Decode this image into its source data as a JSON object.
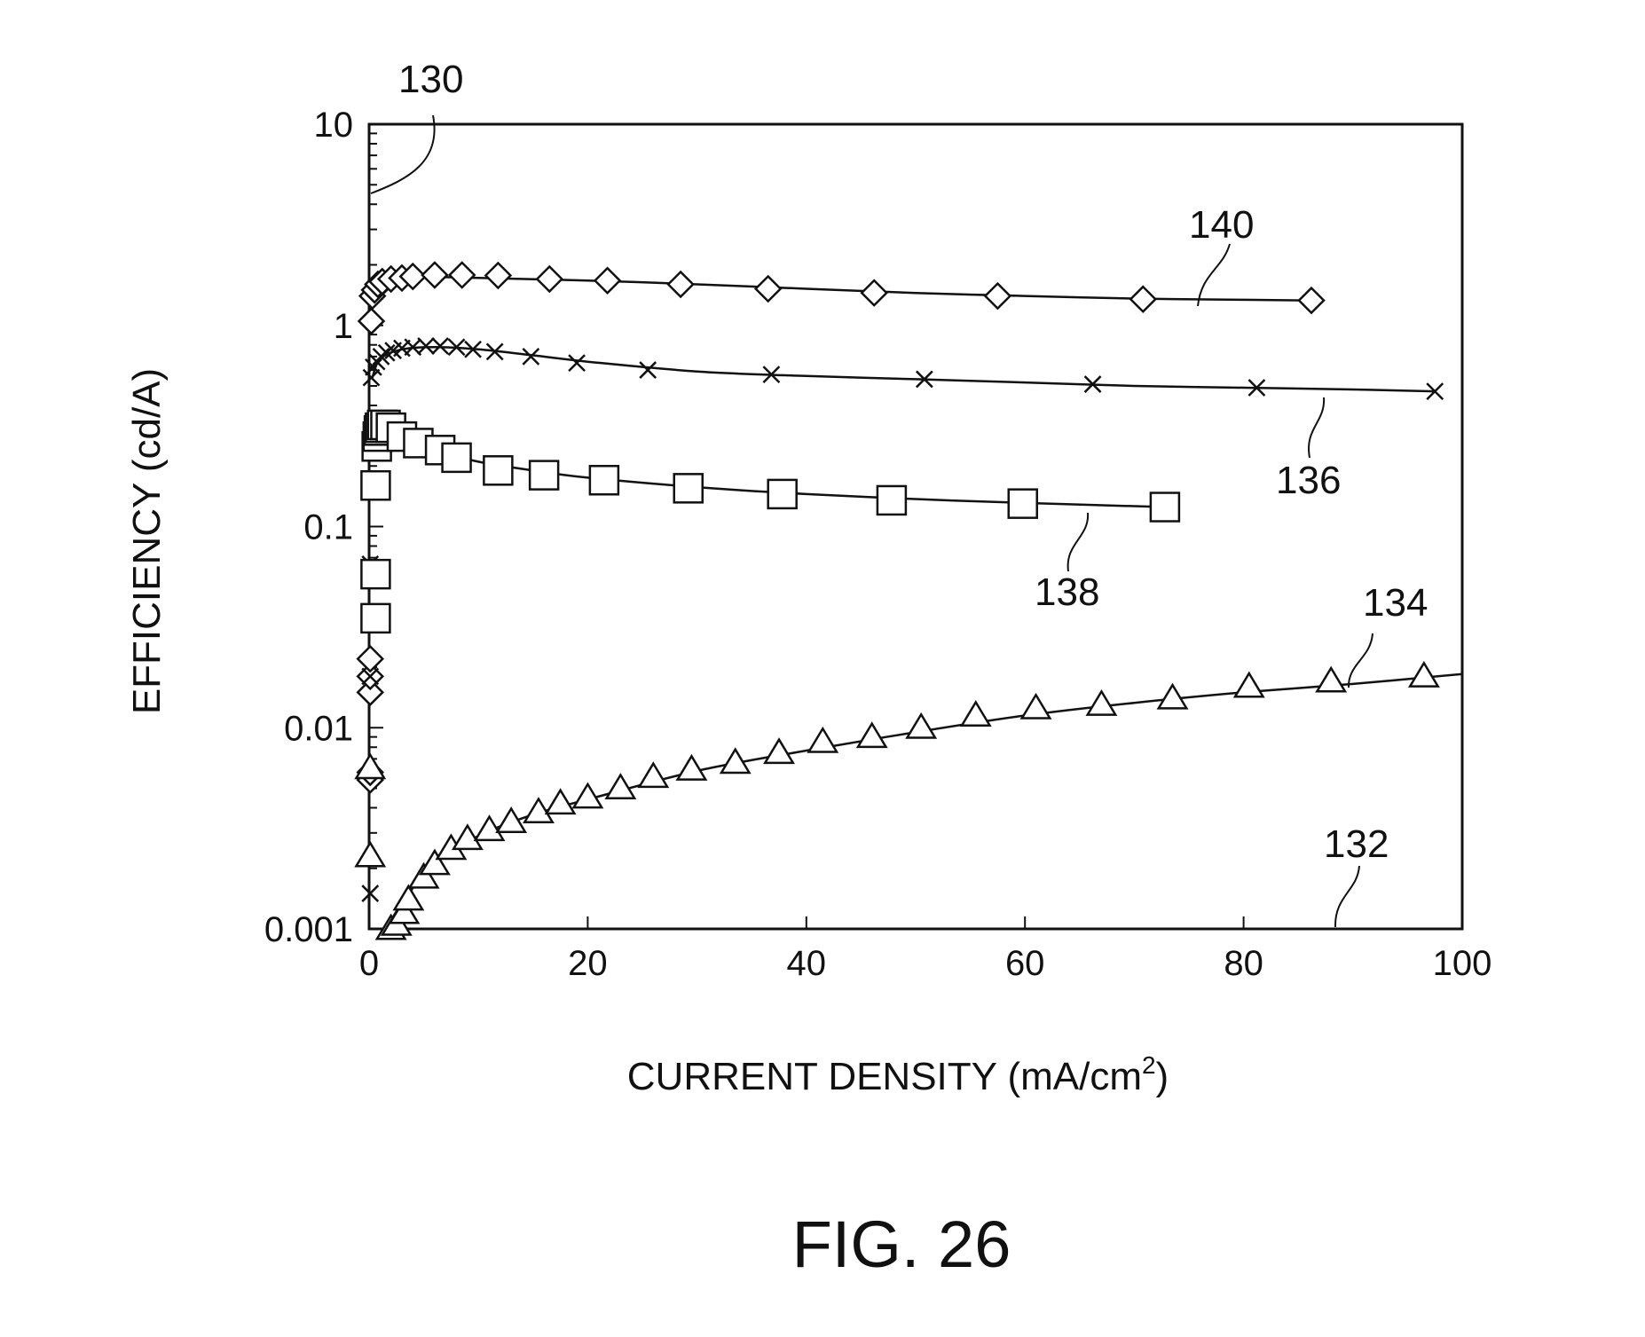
{
  "figure": {
    "caption": "FIG. 26"
  },
  "chart_data": {
    "type": "scatter",
    "title": "",
    "xlabel": "CURRENT DENSITY (mA/cm",
    "xlabel_sup": "2",
    "xlabel_end": ")",
    "ylabel": "EFFICIENCY (cd/A)",
    "xlim": [
      0,
      100
    ],
    "ylim": [
      0.001,
      10
    ],
    "y_scale": "log",
    "grid": false,
    "legend": "none",
    "x_ticks": [
      0,
      20,
      40,
      60,
      80,
      100
    ],
    "x_tick_labels": [
      "0",
      "20",
      "40",
      "60",
      "80",
      "100"
    ],
    "y_ticks": [
      0.001,
      0.01,
      0.1,
      1,
      10
    ],
    "y_tick_labels": [
      "0.001",
      "0.01",
      "0.1",
      "1",
      "10"
    ],
    "series": [
      {
        "ref": "140",
        "marker": "diamond",
        "x": [
          0.1,
          0.1,
          0.1,
          0.1,
          0.1,
          0.2,
          0.3,
          0.5,
          0.8,
          1.2,
          2,
          3,
          4,
          6,
          8.5,
          11.8,
          16.5,
          21.8,
          28.5,
          36.5,
          46.2,
          57.5,
          70.8,
          86.2
        ],
        "y": [
          0.0055,
          0.006,
          0.015,
          0.018,
          0.022,
          1.05,
          1.4,
          1.5,
          1.6,
          1.65,
          1.7,
          1.72,
          1.75,
          1.78,
          1.78,
          1.77,
          1.7,
          1.67,
          1.6,
          1.52,
          1.45,
          1.4,
          1.35,
          1.33
        ],
        "fit": {
          "x": [
            0.3,
            1,
            3,
            6,
            10,
            20,
            30,
            40,
            50,
            60,
            70,
            80,
            86.5
          ],
          "y": [
            1.25,
            1.6,
            1.72,
            1.74,
            1.72,
            1.67,
            1.6,
            1.52,
            1.45,
            1.4,
            1.36,
            1.34,
            1.33
          ]
        }
      },
      {
        "ref": "136",
        "marker": "x",
        "x": [
          0.1,
          0.1,
          0.1,
          0.2,
          0.4,
          0.7,
          1.1,
          1.6,
          2.2,
          3,
          4,
          5.2,
          6.5,
          8,
          9.5,
          11.5,
          14.8,
          19,
          25.5,
          36.8,
          50.8,
          66.2,
          81.2,
          97.5
        ],
        "y": [
          0.0015,
          0.018,
          0.065,
          0.55,
          0.62,
          0.66,
          0.7,
          0.73,
          0.75,
          0.77,
          0.78,
          0.79,
          0.79,
          0.78,
          0.76,
          0.74,
          0.7,
          0.65,
          0.6,
          0.57,
          0.54,
          0.51,
          0.49,
          0.47
        ],
        "fit": {
          "x": [
            0.3,
            1,
            3,
            6,
            10,
            15,
            20,
            30,
            40,
            50,
            60,
            70,
            80,
            90,
            97.5
          ],
          "y": [
            0.55,
            0.68,
            0.76,
            0.78,
            0.76,
            0.71,
            0.66,
            0.59,
            0.56,
            0.54,
            0.52,
            0.5,
            0.49,
            0.48,
            0.47
          ]
        }
      },
      {
        "ref": "138",
        "marker": "square",
        "x": [
          0.6,
          0.6,
          0.6,
          0.7,
          0.8,
          0.9,
          1,
          1.2,
          1.5,
          2,
          3,
          4.5,
          6.5,
          8,
          11.8,
          16,
          21.5,
          29.2,
          37.8,
          47.8,
          59.8,
          72.8
        ],
        "y": [
          0.035,
          0.058,
          0.16,
          0.25,
          0.28,
          0.3,
          0.31,
          0.32,
          0.32,
          0.31,
          0.28,
          0.26,
          0.24,
          0.22,
          0.19,
          0.18,
          0.17,
          0.155,
          0.145,
          0.135,
          0.13,
          0.125
        ],
        "fit": {
          "x": [
            1,
            3,
            6,
            10,
            15,
            20,
            30,
            40,
            50,
            60,
            72.8
          ],
          "y": [
            0.3,
            0.27,
            0.24,
            0.21,
            0.19,
            0.175,
            0.157,
            0.145,
            0.137,
            0.131,
            0.125
          ]
        }
      },
      {
        "ref": "134",
        "marker": "triangle",
        "x": [
          0.1,
          0.1,
          2,
          2.5,
          3.2,
          3.6,
          5,
          6,
          7.5,
          9,
          11,
          13,
          15.5,
          17.5,
          20,
          23,
          26,
          29.5,
          33.5,
          37.5,
          41.5,
          46,
          50.5,
          55.5,
          61,
          67,
          73.5,
          80.5,
          88,
          96.5
        ],
        "y": [
          0.0023,
          0.0063,
          0.001,
          0.00105,
          0.0012,
          0.0014,
          0.0018,
          0.0021,
          0.0025,
          0.0028,
          0.0031,
          0.0034,
          0.0038,
          0.0042,
          0.0045,
          0.005,
          0.0057,
          0.0062,
          0.0067,
          0.0075,
          0.0085,
          0.009,
          0.01,
          0.0115,
          0.0125,
          0.013,
          0.014,
          0.016,
          0.017,
          0.018
        ],
        "fit": {
          "x": [
            2.2,
            4,
            6,
            10,
            15,
            20,
            30,
            40,
            50,
            60,
            70,
            80,
            90,
            100
          ],
          "y": [
            0.001,
            0.0016,
            0.0021,
            0.0029,
            0.0037,
            0.0044,
            0.0061,
            0.0077,
            0.0095,
            0.0115,
            0.0133,
            0.015,
            0.0165,
            0.0185
          ]
        }
      }
    ],
    "annotations": [
      "130",
      "132",
      "134",
      "136",
      "138",
      "140"
    ]
  }
}
